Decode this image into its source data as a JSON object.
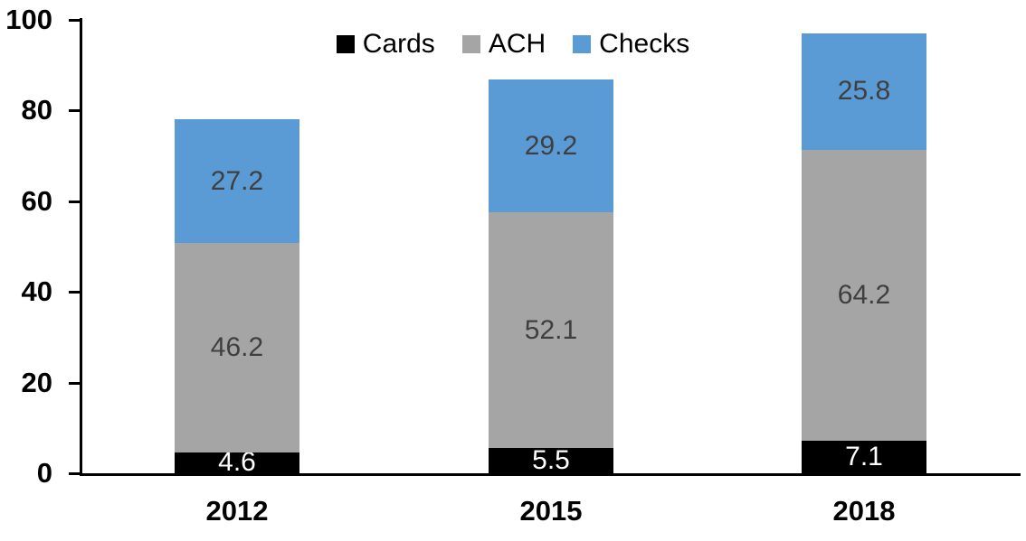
{
  "chart_data": {
    "type": "bar",
    "stacked": true,
    "title": "",
    "xlabel": "",
    "ylabel": "",
    "categories": [
      "2012",
      "2015",
      "2018"
    ],
    "series": [
      {
        "name": "Cards",
        "color": "#000000",
        "label_color": "#ffffff",
        "values": [
          4.6,
          5.5,
          7.1
        ]
      },
      {
        "name": "ACH",
        "color": "#a5a5a5",
        "label_color": "#3f3f3f",
        "values": [
          46.2,
          52.1,
          64.2
        ]
      },
      {
        "name": "Checks",
        "color": "#5b9bd5",
        "label_color": "#3f3f3f",
        "values": [
          27.2,
          29.2,
          25.8
        ]
      }
    ],
    "ylim": [
      0,
      100
    ],
    "yticks": [
      0,
      20,
      40,
      60,
      80,
      100
    ],
    "grid": false,
    "legend_position": "top-center",
    "data_labels_shown": true,
    "colors": {
      "axis": "#000000",
      "background": "#ffffff"
    }
  }
}
